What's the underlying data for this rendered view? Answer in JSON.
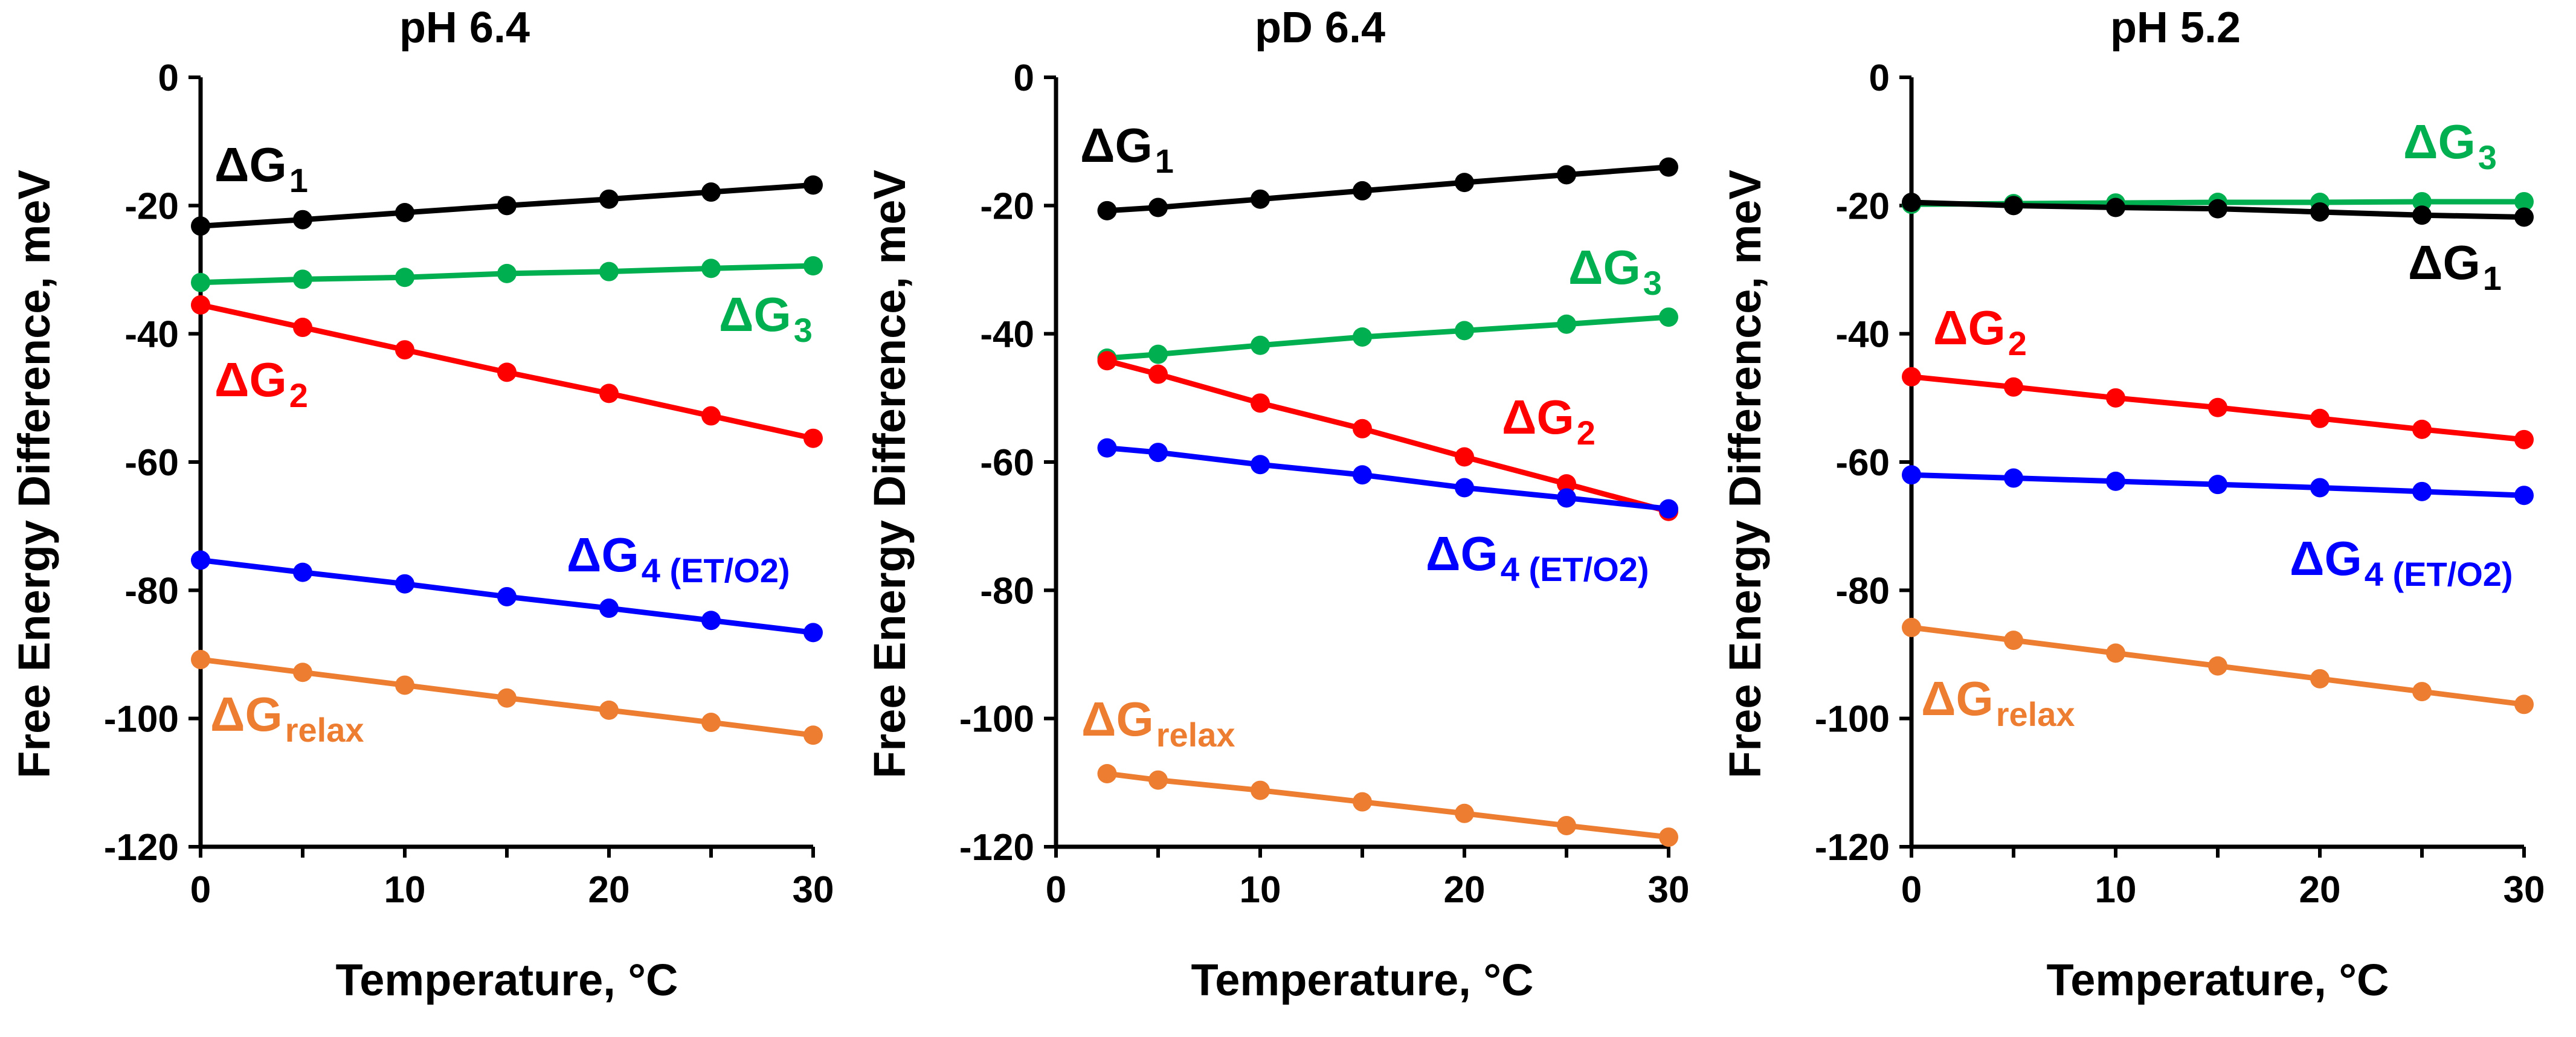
{
  "chart_data": [
    {
      "type": "line",
      "title": "pH 6.4",
      "xlabel": "Temperature, °C",
      "ylabel": "Free Energy Difference, meV",
      "xlim": [
        0,
        30
      ],
      "ylim": [
        -120,
        0
      ],
      "xticks": [
        "0",
        "10",
        "20",
        "30"
      ],
      "yticks": [
        "0",
        "-20",
        "-40",
        "-60",
        "-80",
        "-100",
        "-120"
      ],
      "grid": false,
      "series": [
        {
          "name": "ΔG1",
          "label_main": "ΔG",
          "label_sub": "1",
          "color": "#000000",
          "x": [
            0,
            5,
            10,
            15,
            20,
            25,
            30
          ],
          "y": [
            -23.2,
            -22.2,
            -21.1,
            -20.0,
            -19.0,
            -17.9,
            -16.8
          ]
        },
        {
          "name": "ΔG3",
          "label_main": "ΔG",
          "label_sub": "3",
          "color": "#00b050",
          "x": [
            0,
            5,
            10,
            15,
            20,
            25,
            30
          ],
          "y": [
            -32.0,
            -31.5,
            -31.2,
            -30.6,
            -30.3,
            -29.8,
            -29.4
          ]
        },
        {
          "name": "ΔG2",
          "label_main": "ΔG",
          "label_sub": "2",
          "color": "#ff0000",
          "x": [
            0,
            5,
            10,
            15,
            20,
            25,
            30
          ],
          "y": [
            -35.5,
            -39.0,
            -42.5,
            -46.0,
            -49.3,
            -52.8,
            -56.3
          ]
        },
        {
          "name": "ΔG4 (ET/O2)",
          "label_main": "ΔG",
          "label_sub": "4 (ET/O2)",
          "color": "#0000ff",
          "x": [
            0,
            5,
            10,
            15,
            20,
            25,
            30
          ],
          "y": [
            -75.3,
            -77.2,
            -79.0,
            -81.0,
            -82.8,
            -84.7,
            -86.6
          ]
        },
        {
          "name": "ΔGrelax",
          "label_main": "ΔG",
          "label_sub": "relax",
          "color": "#ed7d31",
          "x": [
            0,
            5,
            10,
            15,
            20,
            25,
            30
          ],
          "y": [
            -90.8,
            -92.8,
            -94.8,
            -96.8,
            -98.7,
            -100.6,
            -102.6
          ]
        }
      ]
    },
    {
      "type": "line",
      "title": "pD 6.4",
      "xlabel": "Temperature, °C",
      "ylabel": "Free Energy Difference, meV",
      "xlim": [
        0,
        30
      ],
      "ylim": [
        -120,
        0
      ],
      "xticks": [
        "0",
        "10",
        "20",
        "30"
      ],
      "yticks": [
        "0",
        "-20",
        "-40",
        "-60",
        "-80",
        "-100",
        "-120"
      ],
      "grid": false,
      "series": [
        {
          "name": "ΔG1",
          "label_main": "ΔG",
          "label_sub": "1",
          "color": "#000000",
          "x": [
            2.5,
            5,
            10,
            15,
            20,
            25,
            30
          ],
          "y": [
            -20.8,
            -20.3,
            -19.0,
            -17.7,
            -16.4,
            -15.2,
            -14.0
          ]
        },
        {
          "name": "ΔG3",
          "label_main": "ΔG",
          "label_sub": "3",
          "color": "#00b050",
          "x": [
            2.5,
            5,
            10,
            15,
            20,
            25,
            30
          ],
          "y": [
            -43.8,
            -43.2,
            -41.8,
            -40.5,
            -39.5,
            -38.5,
            -37.4
          ]
        },
        {
          "name": "ΔG2",
          "label_main": "ΔG",
          "label_sub": "2",
          "color": "#ff0000",
          "x": [
            2.5,
            5,
            10,
            15,
            20,
            25,
            30
          ],
          "y": [
            -44.2,
            -46.3,
            -50.8,
            -54.8,
            -59.2,
            -63.4,
            -67.7
          ]
        },
        {
          "name": "ΔG4 (ET/O2)",
          "label_main": "ΔG",
          "label_sub": "4 (ET/O2)",
          "color": "#0000ff",
          "x": [
            2.5,
            5,
            10,
            15,
            20,
            25,
            30
          ],
          "y": [
            -57.8,
            -58.5,
            -60.4,
            -62.0,
            -64.0,
            -65.6,
            -67.3
          ]
        },
        {
          "name": "ΔGrelax",
          "label_main": "ΔG",
          "label_sub": "relax",
          "color": "#ed7d31",
          "x": [
            2.5,
            5,
            10,
            15,
            20,
            25,
            30
          ],
          "y": [
            -108.6,
            -109.6,
            -111.2,
            -113.0,
            -114.8,
            -116.7,
            -118.5
          ]
        }
      ]
    },
    {
      "type": "line",
      "title": "pH 5.2",
      "xlabel": "Temperature, °C",
      "ylabel": "Free Energy Difference, meV",
      "xlim": [
        0,
        30
      ],
      "ylim": [
        -120,
        0
      ],
      "xticks": [
        "0",
        "10",
        "20",
        "30"
      ],
      "yticks": [
        "0",
        "-20",
        "-40",
        "-60",
        "-80",
        "-100",
        "-120"
      ],
      "grid": false,
      "series": [
        {
          "name": "ΔG3",
          "label_main": "ΔG",
          "label_sub": "3",
          "color": "#00b050",
          "x": [
            0,
            5,
            10,
            15,
            20,
            25,
            30
          ],
          "y": [
            -19.8,
            -19.7,
            -19.6,
            -19.5,
            -19.5,
            -19.4,
            -19.4
          ]
        },
        {
          "name": "ΔG1",
          "label_main": "ΔG",
          "label_sub": "1",
          "color": "#000000",
          "x": [
            0,
            5,
            10,
            15,
            20,
            25,
            30
          ],
          "y": [
            -19.5,
            -20.0,
            -20.3,
            -20.5,
            -21.0,
            -21.5,
            -21.8
          ]
        },
        {
          "name": "ΔG2",
          "label_main": "ΔG",
          "label_sub": "2",
          "color": "#ff0000",
          "x": [
            0,
            5,
            10,
            15,
            20,
            25,
            30
          ],
          "y": [
            -46.7,
            -48.3,
            -50.0,
            -51.5,
            -53.2,
            -54.9,
            -56.5
          ]
        },
        {
          "name": "ΔG4 (ET/O2)",
          "label_main": "ΔG",
          "label_sub": "4 (ET/O2)",
          "color": "#0000ff",
          "x": [
            0,
            5,
            10,
            15,
            20,
            25,
            30
          ],
          "y": [
            -62.0,
            -62.5,
            -63.0,
            -63.5,
            -64.0,
            -64.6,
            -65.2
          ]
        },
        {
          "name": "ΔGrelax",
          "label_main": "ΔG",
          "label_sub": "relax",
          "color": "#ed7d31",
          "x": [
            0,
            5,
            10,
            15,
            20,
            25,
            30
          ],
          "y": [
            -85.8,
            -87.8,
            -89.8,
            -91.8,
            -93.8,
            -95.8,
            -97.8
          ]
        }
      ]
    }
  ]
}
